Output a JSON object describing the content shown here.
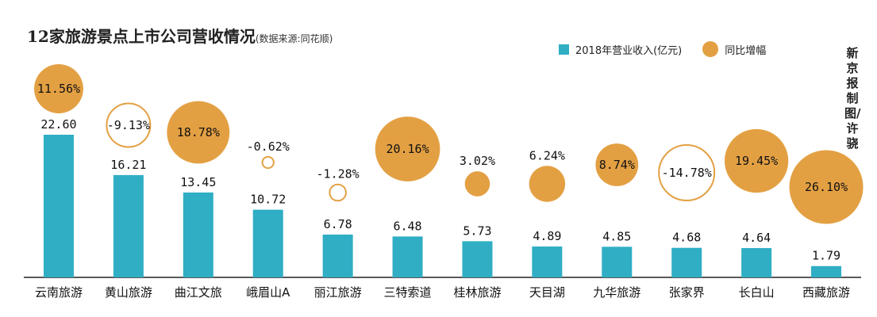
{
  "title": "12家旅游景点上市公司营收情况",
  "source_note": "(数据来源:同花顺)",
  "credit": "新京报制图/许骁",
  "colors": {
    "bar": "#2faec4",
    "bubble": "#e3a043",
    "axis": "#222222"
  },
  "chart_data": {
    "type": "bar",
    "categories": [
      "云南旅游",
      "黄山旅游",
      "曲江文旅",
      "峨眉山A",
      "丽江旅游",
      "三特索道",
      "桂林旅游",
      "天目湖",
      "九华旅游",
      "张家界",
      "长白山",
      "西藏旅游"
    ],
    "series": [
      {
        "name": "2018年营业收入(亿元)",
        "values": [
          22.6,
          16.21,
          13.45,
          10.72,
          6.78,
          6.48,
          5.73,
          4.89,
          4.85,
          4.68,
          4.64,
          1.79
        ],
        "labels": [
          "22.60",
          "16.21",
          "13.45",
          "10.72",
          "6.78",
          "6.48",
          "5.73",
          "4.89",
          "4.85",
          "4.68",
          "4.64",
          "1.79"
        ]
      },
      {
        "name": "同比增幅",
        "values": [
          11.56,
          -9.13,
          18.78,
          -0.62,
          -1.28,
          20.16,
          3.02,
          6.24,
          8.74,
          -14.78,
          19.45,
          26.1
        ],
        "labels": [
          "11.56%",
          "-9.13%",
          "18.78%",
          "-0.62%",
          "-1.28%",
          "20.16%",
          "3.02%",
          "6.24%",
          "8.74%",
          "-14.78%",
          "19.45%",
          "26.10%"
        ]
      }
    ],
    "legend_position": "top-right"
  }
}
